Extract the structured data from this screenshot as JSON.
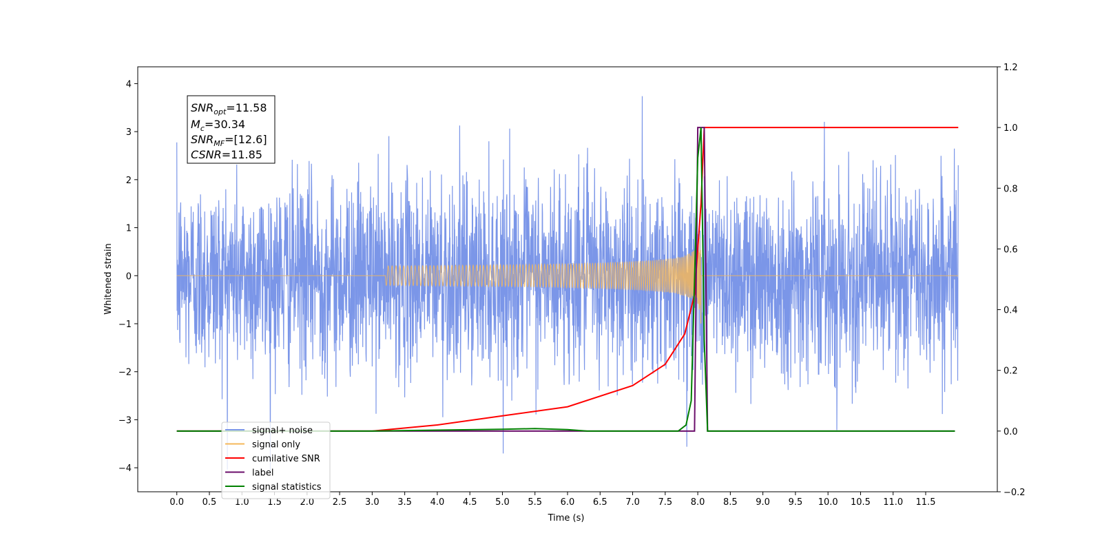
{
  "chart_data": {
    "type": "line",
    "xlabel": "Time (s)",
    "ylabel": "Whitened strain",
    "xlim": [
      -0.6,
      12.6
    ],
    "ylim": [
      -4.5,
      4.35
    ],
    "y2lim": [
      -0.2,
      1.2
    ],
    "x_ticks": [
      "0.0",
      "0.5",
      "1.0",
      "1.5",
      "2.0",
      "2.5",
      "3.0",
      "3.5",
      "4.0",
      "4.5",
      "5.0",
      "5.5",
      "6.0",
      "6.5",
      "7.0",
      "7.5",
      "8.0",
      "8.5",
      "9.0",
      "9.5",
      "10.0",
      "10.5",
      "11.0",
      "11.5"
    ],
    "y_ticks": [
      "4",
      "3",
      "2",
      "1",
      "0",
      "−1",
      "−2",
      "−3",
      "−4"
    ],
    "y2_ticks": [
      "1.2",
      "1.0",
      "0.8",
      "0.6",
      "0.4",
      "0.2",
      "0.0",
      "−0.2"
    ],
    "legend_position": "lower-left",
    "annotation": {
      "snr_opt": {
        "base": "SNR",
        "sub": "opt",
        "value": "=11.58"
      },
      "mc": {
        "base": "M",
        "sub": "c",
        "value": "=30.34"
      },
      "snr_mf": {
        "base": "SNR",
        "sub": "MF",
        "value": "=[12.6]"
      },
      "csnr": {
        "base": "CSNR",
        "sub": "",
        "value": "=11.85"
      }
    },
    "series": [
      {
        "name": "signal+ noise",
        "axis": "left",
        "color": "#7b96e8",
        "x_range": [
          0.0,
          12.0
        ],
        "amplitude_std": 1.0,
        "amplitude_max": 3.95
      },
      {
        "name": "signal only",
        "axis": "left",
        "color": "#f5b75a",
        "chirp_start": 3.2,
        "merger": 8.05,
        "peak_amplitude": 1.0,
        "x_range": [
          0.0,
          12.0
        ]
      },
      {
        "name": "cumilative SNR",
        "axis": "right",
        "color": "#ff0000",
        "x": [
          0.0,
          3.0,
          4.0,
          5.0,
          6.0,
          7.0,
          7.5,
          7.8,
          7.95,
          8.05,
          8.1,
          12.0
        ],
        "y": [
          0.0,
          0.0,
          0.02,
          0.05,
          0.08,
          0.15,
          0.22,
          0.32,
          0.45,
          0.75,
          1.0,
          1.0
        ]
      },
      {
        "name": "label",
        "axis": "right",
        "color": "#6a0d6a",
        "x": [
          0.0,
          7.95,
          8.0,
          8.1,
          8.15,
          11.95
        ],
        "y": [
          0.0,
          0.0,
          1.0,
          1.0,
          0.0,
          0.0
        ]
      },
      {
        "name": "signal statistics",
        "axis": "right",
        "color": "#008000",
        "x": [
          0.0,
          3.0,
          4.0,
          5.0,
          5.5,
          6.0,
          6.3,
          7.7,
          7.82,
          7.9,
          7.95,
          8.0,
          8.05,
          8.1,
          8.15,
          11.95
        ],
        "y": [
          0.0,
          0.0,
          0.003,
          0.006,
          0.008,
          0.005,
          0.0,
          0.0,
          0.02,
          0.1,
          0.5,
          0.9,
          1.0,
          0.3,
          0.0,
          0.0
        ]
      }
    ],
    "legend": [
      {
        "label": "signal+ noise",
        "color": "#7b96e8"
      },
      {
        "label": "signal only",
        "color": "#f5b75a"
      },
      {
        "label": "cumilative SNR",
        "color": "#ff0000"
      },
      {
        "label": "label",
        "color": "#6a0d6a"
      },
      {
        "label": "signal statistics",
        "color": "#008000"
      }
    ]
  }
}
